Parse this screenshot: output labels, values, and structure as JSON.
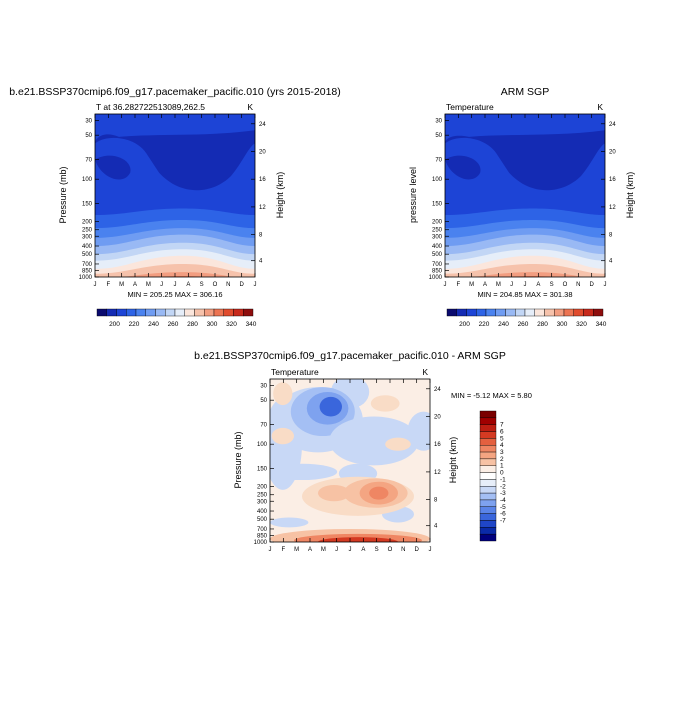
{
  "colors": {
    "palette": [
      "#0a0a6e",
      "#142bb4",
      "#1d44d6",
      "#2d63e6",
      "#4a82ef",
      "#6f9cf2",
      "#99b9f4",
      "#c2d6f5",
      "#e6eef9",
      "#fbe6dc",
      "#f6c2ab",
      "#f29d80",
      "#ec7452",
      "#e04b2d",
      "#c7291b",
      "#8e0d0d"
    ],
    "diff_palette": [
      "#00007d",
      "#0a2aa8",
      "#1f46c8",
      "#3a66dc",
      "#5a84e8",
      "#7ea2ef",
      "#a4bff4",
      "#c8d8f6",
      "#e7eef9",
      "#fbeee5",
      "#f9dcc6",
      "#f7c2a4",
      "#f4a582",
      "#ef8663",
      "#e4603f",
      "#d43a22",
      "#bd1e12",
      "#a00000",
      "#7a0000"
    ]
  },
  "chart_data": [
    {
      "type": "heatmap",
      "title": "b.e21.BSSP370cmip6.f09_g17.pacemaker_pacific.010 (yrs 2015-2018)",
      "subtitle": "T at 36.282722513089,262.5",
      "units": "K",
      "xlabel": "",
      "ylabel": "Pressure (mb)",
      "y2label": "Height (km)",
      "x": [
        "J",
        "F",
        "M",
        "A",
        "M",
        "J",
        "J",
        "A",
        "S",
        "O",
        "N",
        "D",
        "J"
      ],
      "y_ticks": [
        "30",
        "50",
        "70",
        "100",
        "150",
        "200",
        "250",
        "300",
        "400",
        "500",
        "700",
        "850",
        "1000"
      ],
      "y2_ticks": [
        "24",
        "20",
        "16",
        "12",
        "8",
        "4"
      ],
      "stats": "MIN = 205.25 MAX = 306.16",
      "colorbar_labels": [
        "200",
        "220",
        "240",
        "260",
        "280",
        "300",
        "320",
        "340"
      ]
    },
    {
      "type": "heatmap",
      "title": "ARM SGP",
      "subtitle": "Temperature",
      "units": "K",
      "xlabel": "",
      "ylabel": "pressure level",
      "y2label": "Height (km)",
      "x": [
        "J",
        "F",
        "M",
        "A",
        "M",
        "J",
        "J",
        "A",
        "S",
        "O",
        "N",
        "D",
        "J"
      ],
      "y_ticks": [
        "30",
        "50",
        "70",
        "100",
        "150",
        "200",
        "250",
        "300",
        "400",
        "500",
        "700",
        "850",
        "1000"
      ],
      "y2_ticks": [
        "24",
        "20",
        "16",
        "12",
        "8",
        "4"
      ],
      "stats": "MIN = 204.85 MAX = 301.38",
      "colorbar_labels": [
        "200",
        "220",
        "240",
        "260",
        "280",
        "300",
        "320",
        "340"
      ]
    },
    {
      "type": "heatmap",
      "title": "b.e21.BSSP370cmip6.f09_g17.pacemaker_pacific.010 - ARM SGP",
      "subtitle": "Temperature",
      "units": "K",
      "xlabel": "",
      "ylabel": "Pressure (mb)",
      "y2label": "Height (km)",
      "x": [
        "J",
        "F",
        "M",
        "A",
        "M",
        "J",
        "J",
        "A",
        "S",
        "O",
        "N",
        "D",
        "J"
      ],
      "y_ticks": [
        "30",
        "50",
        "70",
        "100",
        "150",
        "200",
        "250",
        "300",
        "400",
        "500",
        "700",
        "850",
        "1000"
      ],
      "y2_ticks": [
        "24",
        "20",
        "16",
        "12",
        "8",
        "4"
      ],
      "stats": "MIN =  -5.12 MAX =   5.80",
      "colorbar_labels": [
        "7",
        "6",
        "5",
        "4",
        "3",
        "2",
        "1",
        "0",
        "-1",
        "-2",
        "-3",
        "-4",
        "-5",
        "-6",
        "-7"
      ]
    }
  ]
}
